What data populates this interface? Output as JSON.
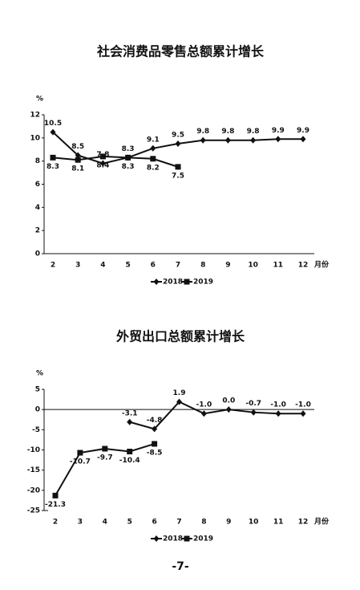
{
  "chart_data": [
    {
      "type": "line",
      "title": "社会消费品零售总额累计增长",
      "y_label": "%",
      "x_label": "月份",
      "categories": [
        "2",
        "3",
        "4",
        "5",
        "6",
        "7",
        "8",
        "9",
        "10",
        "11",
        "12"
      ],
      "series": [
        {
          "name": "2018",
          "color": "#111111",
          "marker": "diamond",
          "values": [
            10.5,
            8.5,
            7.8,
            8.3,
            9.1,
            9.5,
            9.8,
            9.8,
            9.8,
            9.9,
            9.9
          ]
        },
        {
          "name": "2019",
          "color": "#111111",
          "marker": "square",
          "values": [
            8.3,
            8.1,
            8.4,
            8.3,
            8.2,
            7.5,
            null,
            null,
            null,
            null,
            null
          ]
        }
      ],
      "ylim": [
        0,
        12
      ],
      "yticks": [
        0,
        2,
        4,
        6,
        8,
        10,
        12
      ]
    },
    {
      "type": "line",
      "title": "外贸出口总额累计增长",
      "y_label": "%",
      "x_label": "月份",
      "categories": [
        "2",
        "3",
        "4",
        "5",
        "6",
        "7",
        "8",
        "9",
        "10",
        "11",
        "12"
      ],
      "series": [
        {
          "name": "2018",
          "color": "#111111",
          "marker": "diamond",
          "values": [
            null,
            null,
            null,
            -3.1,
            -4.8,
            1.9,
            -1.0,
            0.0,
            -0.7,
            -1.0,
            -1.0
          ],
          "value_labels": [
            null,
            null,
            null,
            "-3.1",
            "-4.8",
            "1.9",
            "-1.0",
            "0.0",
            "-0.7",
            "-1.0",
            "-1.0"
          ]
        },
        {
          "name": "2019",
          "color": "#111111",
          "marker": "square",
          "values": [
            -21.3,
            -10.7,
            -9.7,
            -10.4,
            -8.5,
            null,
            null,
            null,
            null,
            null,
            null
          ],
          "value_labels": [
            "-21.3",
            "-10.7",
            "-9.7",
            "-10.4",
            "-8.5",
            null,
            null,
            null,
            null,
            null,
            null
          ]
        }
      ],
      "ylim": [
        -25,
        5
      ],
      "yticks": [
        -25,
        -20,
        -15,
        -10,
        -5,
        0,
        5
      ]
    }
  ],
  "page_number": "-7-"
}
